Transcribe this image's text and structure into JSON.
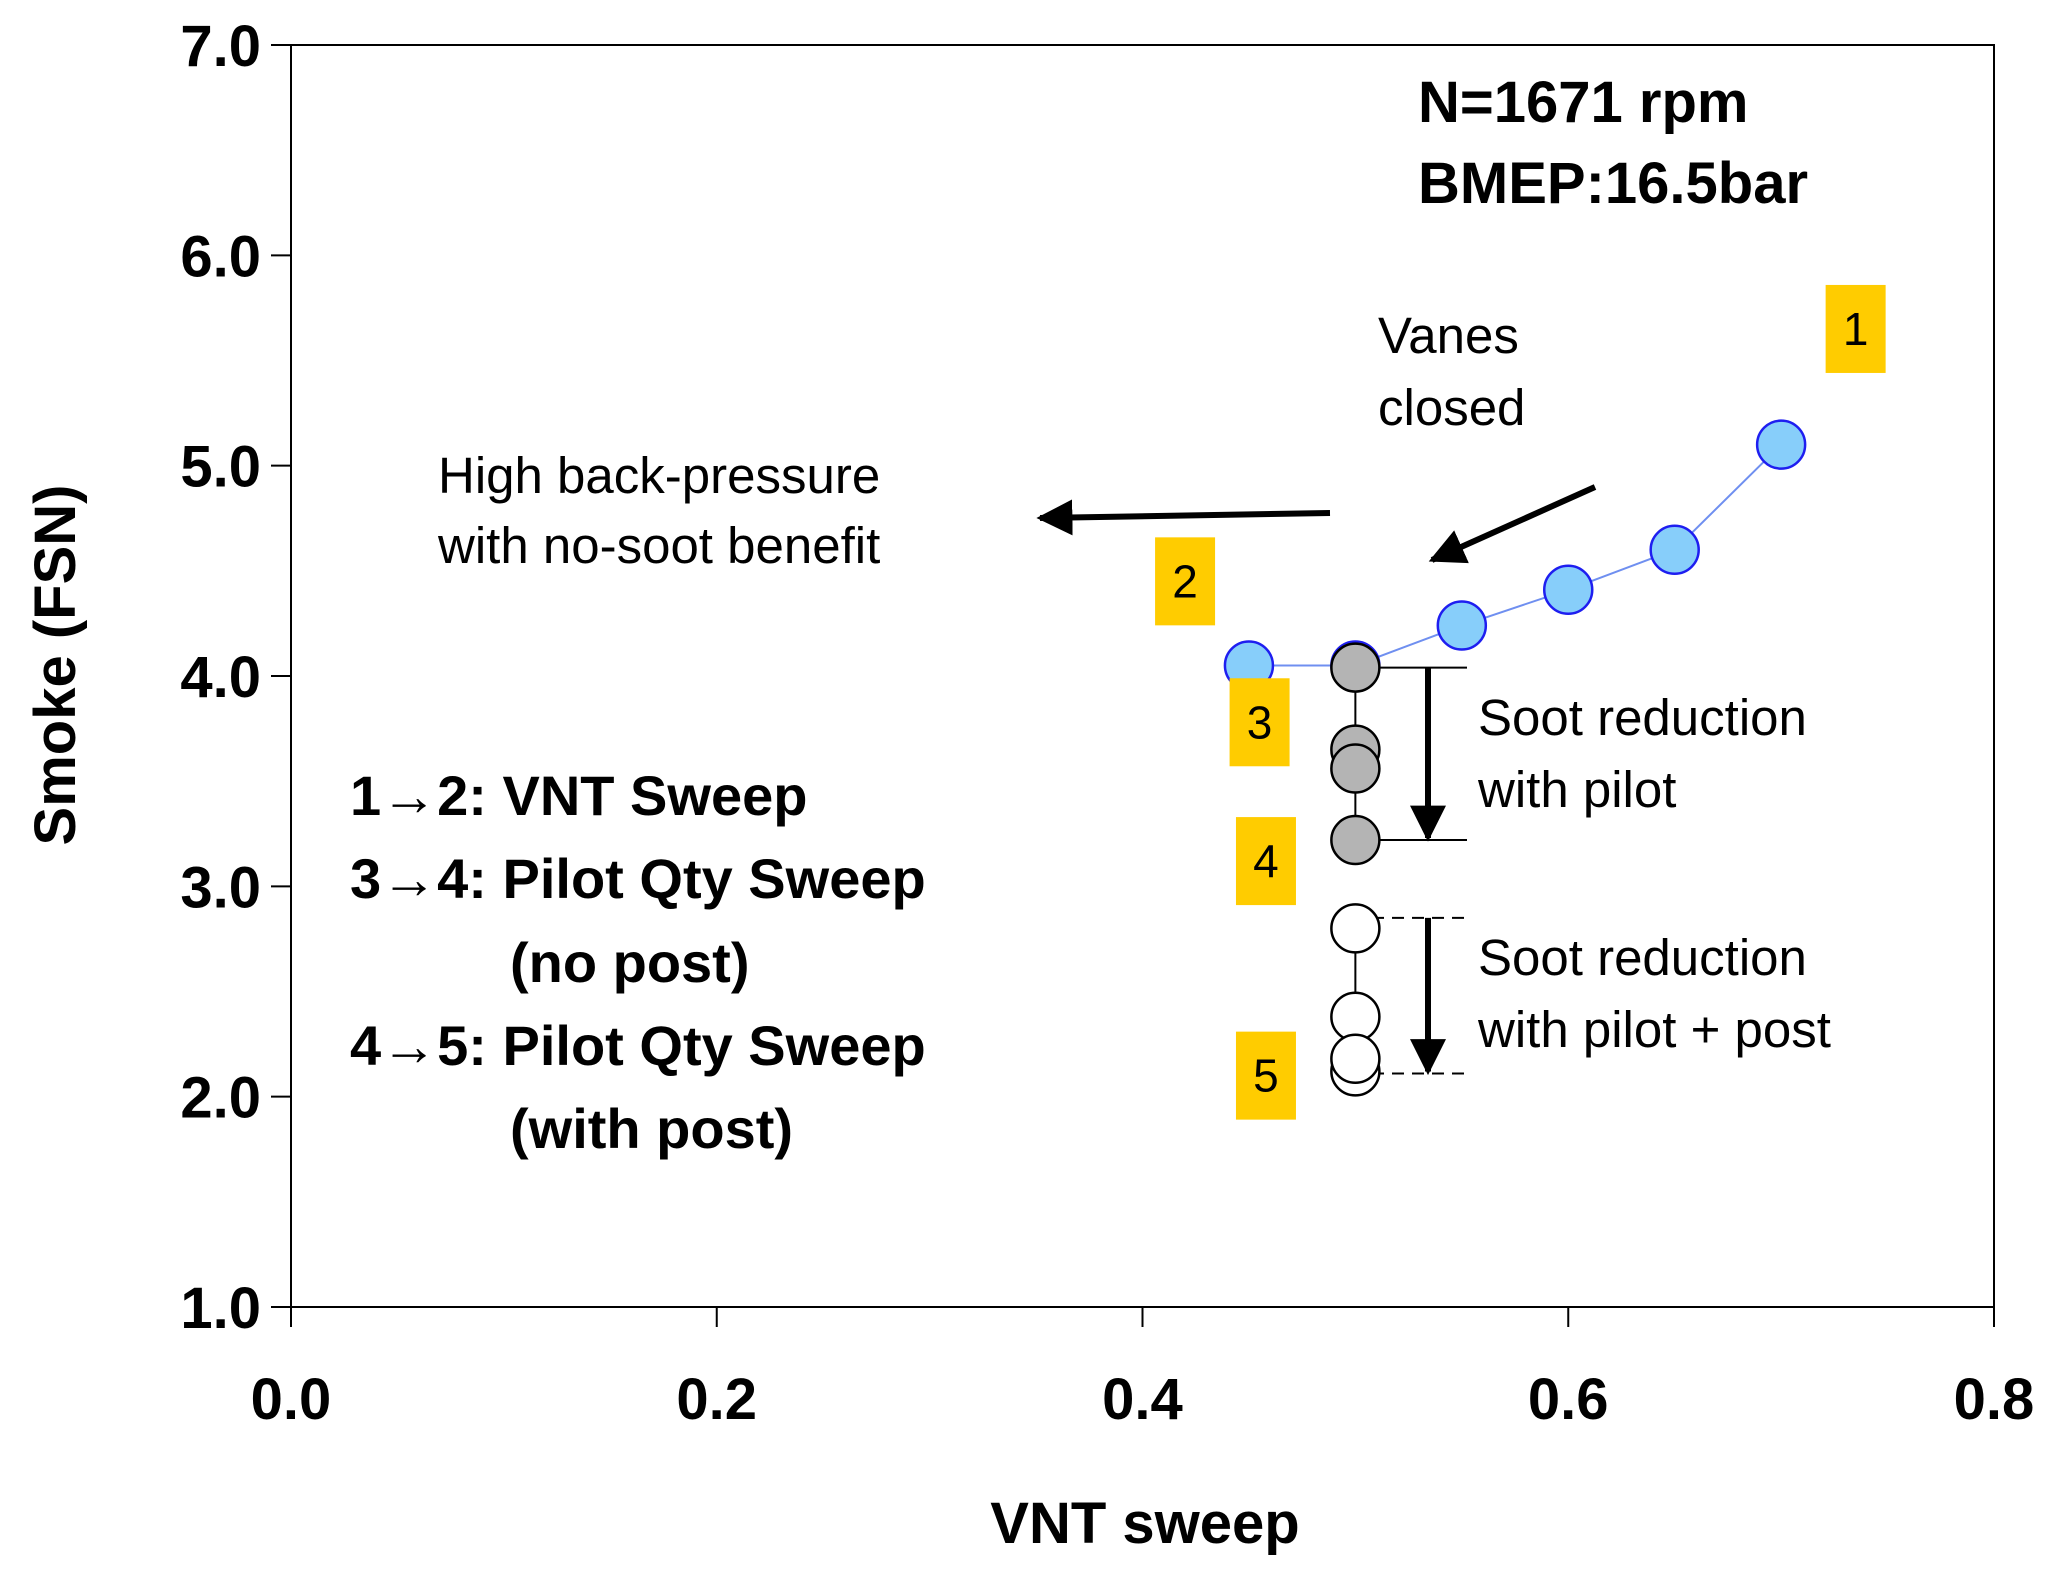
{
  "chart_data": {
    "type": "scatter",
    "xlabel": "VNT sweep",
    "ylabel": "Smoke (FSN)",
    "xlim": [
      0.0,
      0.8
    ],
    "ylim": [
      1.0,
      7.0
    ],
    "xticks": [
      "0.0",
      "0.2",
      "0.4",
      "0.6",
      "0.8"
    ],
    "yticks": [
      "1.0",
      "2.0",
      "3.0",
      "4.0",
      "5.0",
      "6.0",
      "7.0"
    ],
    "grid": false,
    "series": [
      {
        "name": "VNT Sweep",
        "color": "#87cefa",
        "edge": "#1e1ef0",
        "line": "#6f8ff0",
        "x": [
          0.7,
          0.65,
          0.6,
          0.55,
          0.5,
          0.45
        ],
        "y": [
          5.1,
          4.6,
          4.41,
          4.24,
          4.05,
          4.05
        ]
      },
      {
        "name": "Pilot Qty Sweep (no post)",
        "color": "#b4b4b4",
        "edge": "#000000",
        "line": "#000000",
        "x": [
          0.5,
          0.5,
          0.5,
          0.5
        ],
        "y": [
          4.04,
          3.65,
          3.56,
          3.22
        ]
      },
      {
        "name": "Pilot Qty Sweep (with post)",
        "color": "#ffffff",
        "edge": "#000000",
        "line": "#000000",
        "x": [
          0.5,
          0.5,
          0.5,
          0.5
        ],
        "y": [
          2.8,
          2.38,
          2.12,
          2.18
        ]
      }
    ],
    "point_labels": [
      {
        "text": "1",
        "x": 0.735,
        "y": 5.65
      },
      {
        "text": "2",
        "x": 0.42,
        "y": 4.45
      },
      {
        "text": "3",
        "x": 0.455,
        "y": 3.78
      },
      {
        "text": "4",
        "x": 0.458,
        "y": 3.12
      },
      {
        "text": "5",
        "x": 0.458,
        "y": 2.1
      }
    ],
    "label_color": "#ffcc00",
    "conditions": [
      "N=1671 rpm",
      "BMEP:16.5bar"
    ],
    "annotations": {
      "vanes": [
        "Vanes",
        "closed"
      ],
      "backpressure": [
        "High back-pressure",
        "with no-soot benefit"
      ],
      "pilot": [
        "Soot reduction",
        "with pilot"
      ],
      "pilot_post": [
        "Soot reduction",
        "with pilot + post"
      ]
    },
    "legend_text": [
      "1→2: VNT Sweep",
      "3→4: Pilot Qty Sweep",
      "(no post)",
      "4→5: Pilot Qty Sweep",
      "(with post)"
    ]
  }
}
